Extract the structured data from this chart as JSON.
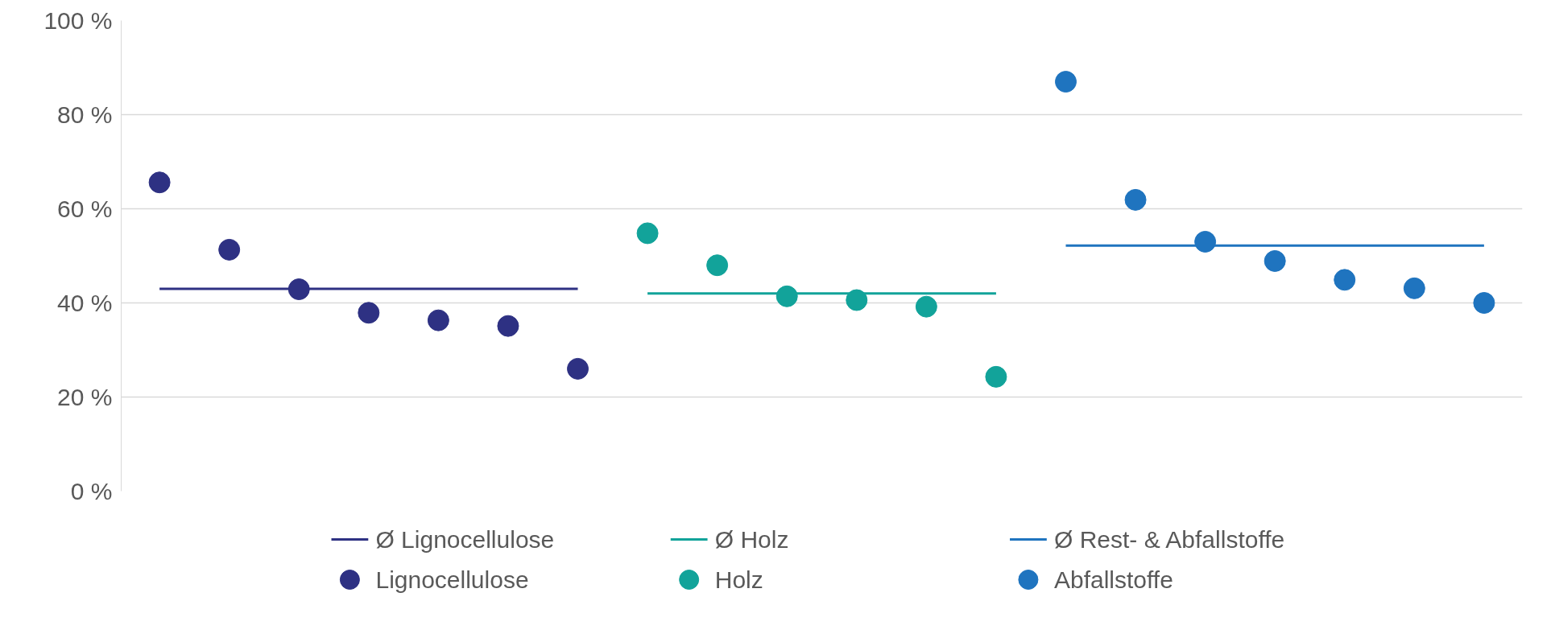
{
  "chart_data": {
    "type": "scatter",
    "categories": [
      null,
      null,
      null,
      null,
      null,
      null,
      null,
      null,
      null,
      null,
      null,
      null,
      null,
      null,
      null,
      null,
      null,
      null,
      null,
      null
    ],
    "ylim": [
      0,
      100
    ],
    "yticks": [
      {
        "value": 0,
        "label": "0 %"
      },
      {
        "value": 20,
        "label": "20 %"
      },
      {
        "value": 40,
        "label": "40 %"
      },
      {
        "value": 60,
        "label": "60 %"
      },
      {
        "value": 80,
        "label": "80 %"
      },
      {
        "value": 100,
        "label": "100 %"
      }
    ],
    "tick_labels": "y",
    "grid": "y",
    "legend": "bottom",
    "series": [
      {
        "name": "Ø Lignocellulose",
        "type": "line",
        "color": "#2e3183",
        "values": [
          43,
          43,
          43,
          43,
          43,
          43,
          43,
          null,
          null,
          null,
          null,
          null,
          null,
          null,
          null,
          null,
          null,
          null,
          null,
          null
        ]
      },
      {
        "name": "Ø Holz",
        "type": "line",
        "color": "#12a39a",
        "values": [
          null,
          null,
          null,
          null,
          null,
          null,
          null,
          42,
          42,
          42,
          42,
          42,
          42,
          null,
          null,
          null,
          null,
          null,
          null,
          null
        ]
      },
      {
        "name": "Ø Rest- & Abfallstoffe",
        "type": "line",
        "color": "#1f74bf",
        "values": [
          null,
          null,
          null,
          null,
          null,
          null,
          null,
          null,
          null,
          null,
          null,
          null,
          null,
          52.2,
          52.2,
          52.2,
          52.2,
          52.2,
          52.2,
          52.2
        ]
      },
      {
        "name": "Lignocellulose",
        "marker": "circle",
        "color": "#2e3183",
        "values": [
          65.6,
          51.3,
          42.9,
          37.9,
          36.3,
          35.1,
          26.0,
          null,
          null,
          null,
          null,
          null,
          null,
          null,
          null,
          null,
          null,
          null,
          null,
          null
        ]
      },
      {
        "name": "Holz",
        "marker": "circle",
        "color": "#12a39a",
        "values": [
          null,
          null,
          null,
          null,
          null,
          null,
          null,
          54.8,
          48.0,
          41.4,
          40.6,
          39.2,
          24.3,
          null,
          null,
          null,
          null,
          null,
          null,
          null
        ]
      },
      {
        "name": "Abfallstoffe",
        "marker": "circle",
        "color": "#1f74bf",
        "values": [
          null,
          null,
          null,
          null,
          null,
          null,
          null,
          null,
          null,
          null,
          null,
          null,
          null,
          87.0,
          61.9,
          53.0,
          48.9,
          44.9,
          43.1,
          40.0
        ]
      }
    ]
  }
}
